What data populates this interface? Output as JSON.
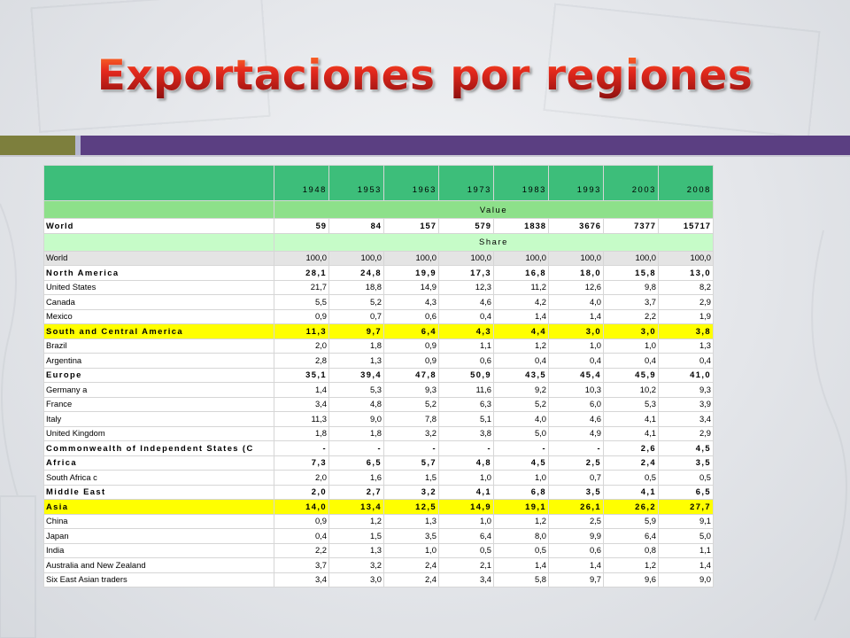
{
  "slide": {
    "title": "Exportaciones por regiones"
  },
  "table": {
    "years": [
      "1948",
      "1953",
      "1963",
      "1973",
      "1983",
      "1993",
      "2003",
      "2008"
    ],
    "value_label": "Value",
    "share_label": "Share",
    "world_value": {
      "label": "World",
      "values": [
        "59",
        "84",
        "157",
        "579",
        "1838",
        "3676",
        "7377",
        "15717"
      ]
    },
    "share_rows": [
      {
        "label": "World",
        "values": [
          "100,0",
          "100,0",
          "100,0",
          "100,0",
          "100,0",
          "100,0",
          "100,0",
          "100,0"
        ],
        "style": "gray"
      },
      {
        "label": "North America",
        "values": [
          "28,1",
          "24,8",
          "19,9",
          "17,3",
          "16,8",
          "18,0",
          "15,8",
          "13,0"
        ],
        "style": "bold"
      },
      {
        "label": "United States",
        "values": [
          "21,7",
          "18,8",
          "14,9",
          "12,3",
          "11,2",
          "12,6",
          "9,8",
          "8,2"
        ],
        "style": "sub"
      },
      {
        "label": "Canada",
        "values": [
          "5,5",
          "5,2",
          "4,3",
          "4,6",
          "4,2",
          "4,0",
          "3,7",
          "2,9"
        ],
        "style": "sub"
      },
      {
        "label": "Mexico",
        "values": [
          "0,9",
          "0,7",
          "0,6",
          "0,4",
          "1,4",
          "1,4",
          "2,2",
          "1,9"
        ],
        "style": "sub"
      },
      {
        "label": "South and Central America",
        "values": [
          "11,3",
          "9,7",
          "6,4",
          "4,3",
          "4,4",
          "3,0",
          "3,0",
          "3,8"
        ],
        "style": "yellow"
      },
      {
        "label": "Brazil",
        "values": [
          "2,0",
          "1,8",
          "0,9",
          "1,1",
          "1,2",
          "1,0",
          "1,0",
          "1,3"
        ],
        "style": "sub"
      },
      {
        "label": "Argentina",
        "values": [
          "2,8",
          "1,3",
          "0,9",
          "0,6",
          "0,4",
          "0,4",
          "0,4",
          "0,4"
        ],
        "style": "sub"
      },
      {
        "label": "Europe",
        "values": [
          "35,1",
          "39,4",
          "47,8",
          "50,9",
          "43,5",
          "45,4",
          "45,9",
          "41,0"
        ],
        "style": "bold"
      },
      {
        "label": "Germany a",
        "values": [
          "1,4",
          "5,3",
          "9,3",
          "11,6",
          "9,2",
          "10,3",
          "10,2",
          "9,3"
        ],
        "style": "sub"
      },
      {
        "label": "France",
        "values": [
          "3,4",
          "4,8",
          "5,2",
          "6,3",
          "5,2",
          "6,0",
          "5,3",
          "3,9"
        ],
        "style": "sub"
      },
      {
        "label": "Italy",
        "values": [
          "11,3",
          "9,0",
          "7,8",
          "5,1",
          "4,0",
          "4,6",
          "4,1",
          "3,4"
        ],
        "style": "sub"
      },
      {
        "label": "United Kingdom",
        "values": [
          "1,8",
          "1,8",
          "3,2",
          "3,8",
          "5,0",
          "4,9",
          "4,1",
          "2,9"
        ],
        "style": "sub"
      },
      {
        "label": "Commonwealth of Independent States (C",
        "values": [
          "-",
          "-",
          "-",
          "-",
          "-",
          "-",
          "2,6",
          "4,5"
        ],
        "style": "bold"
      },
      {
        "label": "Africa",
        "values": [
          "7,3",
          "6,5",
          "5,7",
          "4,8",
          "4,5",
          "2,5",
          "2,4",
          "3,5"
        ],
        "style": "bold"
      },
      {
        "label": "South Africa c",
        "values": [
          "2,0",
          "1,6",
          "1,5",
          "1,0",
          "1,0",
          "0,7",
          "0,5",
          "0,5"
        ],
        "style": "sub"
      },
      {
        "label": "Middle East",
        "values": [
          "2,0",
          "2,7",
          "3,2",
          "4,1",
          "6,8",
          "3,5",
          "4,1",
          "6,5"
        ],
        "style": "bold"
      },
      {
        "label": "Asia",
        "values": [
          "14,0",
          "13,4",
          "12,5",
          "14,9",
          "19,1",
          "26,1",
          "26,2",
          "27,7"
        ],
        "style": "yellow"
      },
      {
        "label": "China",
        "values": [
          "0,9",
          "1,2",
          "1,3",
          "1,0",
          "1,2",
          "2,5",
          "5,9",
          "9,1"
        ],
        "style": "sub"
      },
      {
        "label": "Japan",
        "values": [
          "0,4",
          "1,5",
          "3,5",
          "6,4",
          "8,0",
          "9,9",
          "6,4",
          "5,0"
        ],
        "style": "sub"
      },
      {
        "label": "India",
        "values": [
          "2,2",
          "1,3",
          "1,0",
          "0,5",
          "0,5",
          "0,6",
          "0,8",
          "1,1"
        ],
        "style": "sub"
      },
      {
        "label": "Australia and New Zealand",
        "values": [
          "3,7",
          "3,2",
          "2,4",
          "2,1",
          "1,4",
          "1,4",
          "1,2",
          "1,4"
        ],
        "style": "sub"
      },
      {
        "label": "Six East Asian traders",
        "values": [
          "3,4",
          "3,0",
          "2,4",
          "3,4",
          "5,8",
          "9,7",
          "9,6",
          "9,0"
        ],
        "style": "sub"
      }
    ]
  }
}
